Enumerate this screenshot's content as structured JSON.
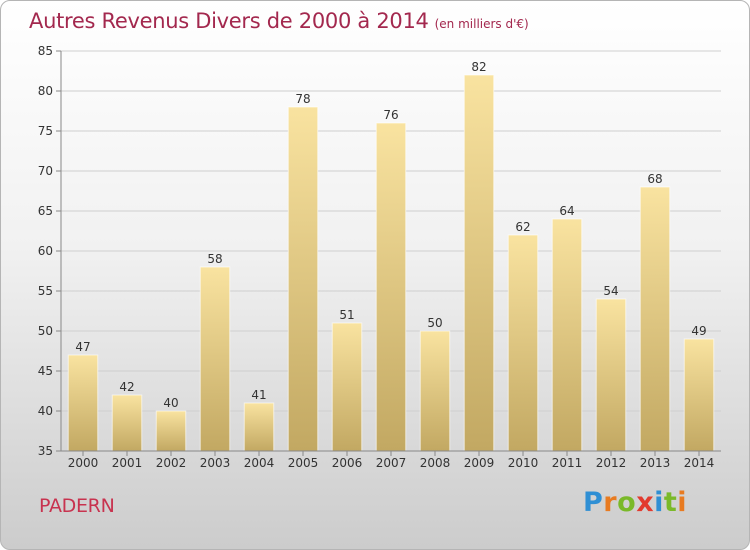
{
  "chart_data": {
    "type": "bar",
    "title": "Autres Revenus Divers de 2000 à 2014",
    "subtitle": "(en milliers d'€)",
    "categories": [
      "2000",
      "2001",
      "2002",
      "2003",
      "2004",
      "2005",
      "2006",
      "2007",
      "2008",
      "2009",
      "2010",
      "2011",
      "2012",
      "2013",
      "2014"
    ],
    "values": [
      47,
      42,
      40,
      58,
      41,
      78,
      51,
      76,
      50,
      82,
      62,
      64,
      54,
      68,
      49
    ],
    "ylim": [
      35,
      85
    ],
    "yticks": [
      35,
      40,
      45,
      50,
      55,
      60,
      65,
      70,
      75,
      80,
      85
    ],
    "grid": true,
    "legend": "none"
  },
  "footer": {
    "place": "PADERN",
    "logo_letters": [
      "P",
      "r",
      "o",
      "x",
      "i",
      "t",
      "i"
    ]
  },
  "colors": {
    "title": "#a3284e",
    "place": "#c8334f",
    "bar_top": "#f9e3a0",
    "bar_bottom": "#c2a862",
    "grid": "#cfcfcf",
    "axis": "#888888",
    "logo": [
      "#2f8fd4",
      "#e87b21",
      "#7ab929",
      "#e23b2f",
      "#2f8fd4",
      "#7ab929",
      "#e87b21"
    ]
  }
}
